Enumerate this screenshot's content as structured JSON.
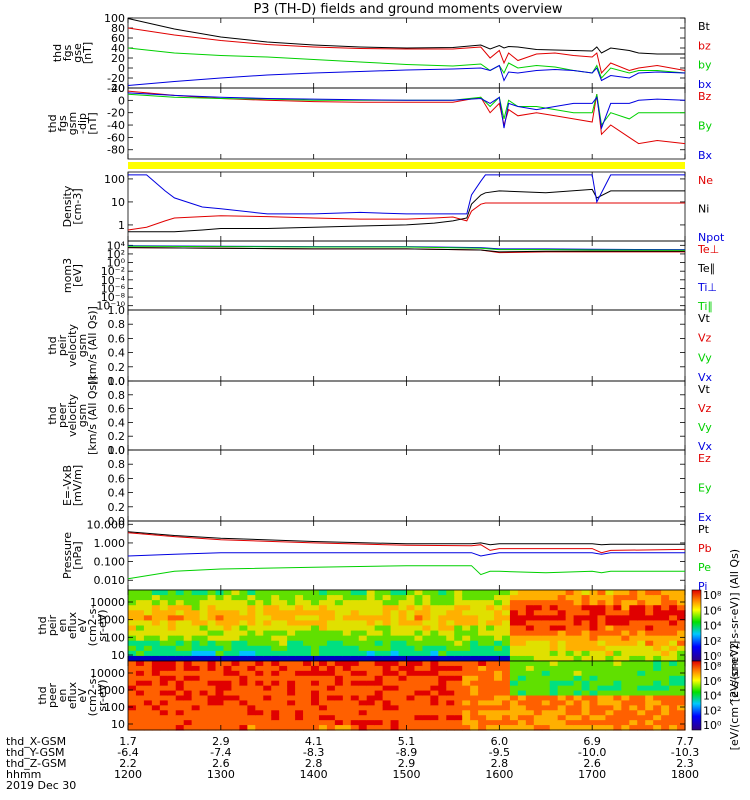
{
  "title": "P3 (TH-D) fields and ground moments overview",
  "time_labels": {
    "rows": [
      "thd_X-GSM",
      "thd_Y-GSM",
      "thd_Z-GSM",
      "hhmm"
    ],
    "date": "2019 Dec 30",
    "x_gsm": [
      "1.7",
      "2.9",
      "4.1",
      "5.1",
      "6.0",
      "6.9",
      "7.7"
    ],
    "y_gsm": [
      "-6.4",
      "-7.4",
      "-8.3",
      "-8.9",
      "-9.5",
      "-10.0",
      "-10.3"
    ],
    "z_gsm": [
      "2.2",
      "2.6",
      "2.8",
      "2.9",
      "2.8",
      "2.6",
      "2.3"
    ],
    "hhmm": [
      "1200",
      "1300",
      "1400",
      "1500",
      "1600",
      "1700",
      "1800"
    ]
  },
  "colors": {
    "black": "#000000",
    "red": "#e00000",
    "green": "#00d000",
    "blue": "#0000e0",
    "yellow": "#ffff00"
  },
  "chart_data": [
    {
      "type": "line",
      "ylabel": [
        "thd",
        "fgs",
        "gse",
        "[nT]"
      ],
      "ylim": [
        -40,
        100
      ],
      "yticks": [
        "100",
        "80",
        "60",
        "40",
        "20",
        "0",
        "-20",
        "-40"
      ],
      "legend": [
        "Bt",
        "bz",
        "by",
        "bx"
      ],
      "legend_colors": [
        "#000000",
        "#e00000",
        "#00d000",
        "#0000e0"
      ],
      "x": [
        0,
        0.5,
        1,
        1.5,
        2,
        2.5,
        3,
        3.5,
        3.8,
        3.9,
        4,
        4.05,
        4.1,
        4.2,
        4.4,
        4.6,
        4.8,
        5,
        5.05,
        5.1,
        5.2,
        5.4,
        5.5,
        5.7,
        6
      ],
      "series": [
        {
          "name": "Bt",
          "color": "#000000",
          "values": [
            99,
            78,
            62,
            52,
            46,
            42,
            40,
            41,
            46,
            38,
            45,
            40,
            43,
            42,
            37,
            36,
            35,
            34,
            42,
            30,
            40,
            35,
            30,
            28,
            28
          ]
        },
        {
          "name": "bz",
          "color": "#e00000",
          "values": [
            80,
            66,
            55,
            47,
            42,
            39,
            38,
            38,
            42,
            20,
            35,
            10,
            30,
            15,
            28,
            30,
            25,
            22,
            30,
            -10,
            10,
            -5,
            0,
            5,
            -5
          ]
        },
        {
          "name": "by",
          "color": "#00d000",
          "values": [
            40,
            30,
            25,
            22,
            17,
            12,
            7,
            4,
            8,
            -5,
            5,
            -10,
            10,
            0,
            5,
            2,
            -5,
            -10,
            5,
            -20,
            0,
            -10,
            -5,
            -5,
            -10
          ]
        },
        {
          "name": "bx",
          "color": "#0000e0",
          "values": [
            -35,
            -27,
            -20,
            -14,
            -10,
            -7,
            -4,
            -2,
            0,
            -5,
            5,
            -25,
            -8,
            -10,
            -5,
            -3,
            -5,
            -10,
            0,
            -25,
            -15,
            -20,
            -10,
            -8,
            -10
          ]
        }
      ]
    },
    {
      "type": "line",
      "ylabel": [
        "thd",
        "fgs",
        "gsm",
        "-dip",
        "[nT]"
      ],
      "ylim": [
        -95,
        20
      ],
      "yticks": [
        "20",
        "0",
        "-20",
        "-40",
        "-60",
        "-80"
      ],
      "legend": [
        "Bz",
        "By",
        "Bx"
      ],
      "legend_colors": [
        "#e00000",
        "#00d000",
        "#0000e0"
      ],
      "x": [
        0,
        0.5,
        1,
        1.5,
        2,
        2.5,
        3,
        3.5,
        3.8,
        3.9,
        4,
        4.05,
        4.1,
        4.2,
        4.4,
        4.6,
        4.8,
        5,
        5.05,
        5.1,
        5.2,
        5.4,
        5.5,
        5.7,
        6
      ],
      "series": [
        {
          "name": "Bz",
          "color": "#e00000",
          "values": [
            15,
            8,
            3,
            0,
            -2,
            -3,
            -3,
            -3,
            5,
            -20,
            -5,
            -40,
            -15,
            -25,
            -20,
            -25,
            -30,
            -35,
            10,
            -55,
            -40,
            -60,
            -70,
            -65,
            -70
          ]
        },
        {
          "name": "By",
          "color": "#00d000",
          "values": [
            10,
            5,
            3,
            2,
            0,
            0,
            0,
            0,
            5,
            -10,
            5,
            -30,
            0,
            -10,
            -10,
            -15,
            -20,
            -20,
            10,
            -40,
            -20,
            -30,
            -20,
            -20,
            -20
          ]
        },
        {
          "name": "Bx",
          "color": "#0000e0",
          "values": [
            12,
            8,
            5,
            3,
            2,
            1,
            0,
            0,
            3,
            -5,
            5,
            -45,
            -5,
            -10,
            -15,
            -10,
            -5,
            -5,
            5,
            -45,
            -5,
            -5,
            0,
            2,
            0
          ]
        }
      ]
    },
    {
      "type": "line",
      "ylabel": [
        "Density",
        "[cm-3]"
      ],
      "ylim": [
        0.2,
        200
      ],
      "scale": "log",
      "yticks": [
        "100",
        "10",
        "1"
      ],
      "legend": [
        "Ne",
        "Ni",
        "Npot"
      ],
      "legend_colors": [
        "#e00000",
        "#000000",
        "#0000e0"
      ],
      "x": [
        0,
        0.2,
        0.4,
        0.5,
        0.8,
        1,
        1.5,
        2,
        2.5,
        3,
        3.3,
        3.5,
        3.65,
        3.7,
        3.8,
        3.85,
        4,
        4.5,
        5,
        5.05,
        5.2,
        5.4,
        6
      ],
      "series": [
        {
          "name": "Ne",
          "color": "#e00000",
          "values": [
            0.6,
            0.8,
            1.5,
            2,
            2.3,
            2.5,
            2.3,
            2,
            1.8,
            1.8,
            2,
            2.2,
            1.5,
            4,
            8,
            9,
            9,
            9,
            9,
            9,
            9,
            9,
            9
          ]
        },
        {
          "name": "Ni",
          "color": "#000000",
          "values": [
            0.5,
            0.5,
            0.5,
            0.5,
            0.6,
            0.7,
            0.7,
            0.8,
            0.9,
            1,
            1.2,
            1.5,
            2,
            8,
            20,
            25,
            30,
            25,
            35,
            15,
            30,
            30,
            30
          ]
        },
        {
          "name": "Npot",
          "color": "#0000e0",
          "values": [
            150,
            150,
            30,
            15,
            6,
            5,
            3,
            3,
            3.5,
            3,
            3,
            3,
            3,
            20,
            80,
            150,
            150,
            150,
            150,
            10,
            150,
            150,
            150
          ]
        }
      ]
    },
    {
      "type": "line",
      "ylabel": [
        "mom3",
        "[eV]"
      ],
      "ylim": [
        1e-11,
        100000.0
      ],
      "scale": "log",
      "yticks": [
        "10⁴",
        "10²",
        "10⁰",
        "10⁻²",
        "10⁻⁴",
        "10⁻⁶",
        "10⁻⁸",
        "10⁻¹⁰"
      ],
      "legend": [
        "Te⊥",
        "Te∥",
        "Ti⊥",
        "Ti∥"
      ],
      "legend_colors": [
        "#e00000",
        "#000000",
        "#0000e0",
        "#00d000"
      ],
      "x": [
        0,
        1,
        2,
        3,
        3.8,
        4,
        4.5,
        5,
        6
      ],
      "series": [
        {
          "name": "Te⊥",
          "color": "#e00000",
          "values": [
            3000,
            2000,
            1500,
            1500,
            800,
            200,
            300,
            300,
            300
          ]
        },
        {
          "name": "Te∥",
          "color": "#000000",
          "values": [
            3000,
            2000,
            1500,
            1500,
            800,
            300,
            400,
            400,
            400
          ]
        },
        {
          "name": "Ti⊥",
          "color": "#0000e0",
          "values": [
            8000,
            6000,
            5000,
            5000,
            3000,
            1500,
            1500,
            1200,
            1000
          ]
        },
        {
          "name": "Ti∥",
          "color": "#00d000",
          "values": [
            6000,
            5000,
            4000,
            4000,
            2000,
            1000,
            1000,
            800,
            700
          ]
        }
      ]
    },
    {
      "type": "line",
      "ylabel": [
        "thd",
        "peir",
        "velocity",
        "gsm",
        "[km/s (All Qs)]"
      ],
      "ylim": [
        0,
        1
      ],
      "yticks": [
        "1.0",
        "0.8",
        "0.6",
        "0.4",
        "0.2",
        "0.0"
      ],
      "legend": [
        "Vt",
        "Vz",
        "Vy",
        "Vx"
      ],
      "legend_colors": [
        "#000000",
        "#e00000",
        "#00d000",
        "#0000e0"
      ],
      "series": []
    },
    {
      "type": "line",
      "ylabel": [
        "thd",
        "peer",
        "velocity",
        "gsm",
        "[km/s (All Qs)]"
      ],
      "ylim": [
        0,
        1
      ],
      "yticks": [
        "1.0",
        "0.8",
        "0.6",
        "0.4",
        "0.2",
        "0.0"
      ],
      "legend": [
        "Vt",
        "Vz",
        "Vy",
        "Vx"
      ],
      "legend_colors": [
        "#000000",
        "#e00000",
        "#00d000",
        "#0000e0"
      ],
      "series": []
    },
    {
      "type": "line",
      "ylabel": [
        "E=-VxB",
        "[mV/m]"
      ],
      "ylim": [
        0,
        1
      ],
      "yticks": [
        "1.0",
        "0.8",
        "0.6",
        "0.4",
        "0.2",
        "0.0"
      ],
      "legend": [
        "Ez",
        "Ey",
        "Ex"
      ],
      "legend_colors": [
        "#e00000",
        "#00d000",
        "#0000e0"
      ],
      "series": []
    },
    {
      "type": "line",
      "ylabel": [
        "Pressure",
        "[nPa]"
      ],
      "ylim": [
        0.003,
        15
      ],
      "scale": "log",
      "yticks": [
        "10.000",
        "1.000",
        "0.100",
        "0.010"
      ],
      "legend": [
        "Pt",
        "Pb",
        "Pe",
        "Pi"
      ],
      "legend_colors": [
        "#000000",
        "#e00000",
        "#00d000",
        "#0000e0"
      ],
      "x": [
        0,
        0.5,
        1,
        2,
        3,
        3.7,
        3.8,
        3.9,
        4,
        4.5,
        5,
        5.1,
        5.2,
        6
      ],
      "series": [
        {
          "name": "Pt",
          "color": "#000000",
          "values": [
            4,
            2.5,
            1.8,
            1.2,
            0.9,
            0.9,
            1,
            0.8,
            0.9,
            0.9,
            0.9,
            0.8,
            0.85,
            0.85
          ]
        },
        {
          "name": "Pb",
          "color": "#e00000",
          "values": [
            3.5,
            2.2,
            1.5,
            1,
            0.75,
            0.7,
            0.8,
            0.4,
            0.5,
            0.5,
            0.5,
            0.3,
            0.4,
            0.45
          ]
        },
        {
          "name": "Pe",
          "color": "#00d000",
          "values": [
            0.012,
            0.03,
            0.04,
            0.05,
            0.06,
            0.06,
            0.02,
            0.03,
            0.03,
            0.025,
            0.03,
            0.025,
            0.03,
            0.03
          ]
        },
        {
          "name": "Pi",
          "color": "#0000e0",
          "values": [
            0.2,
            0.25,
            0.3,
            0.3,
            0.3,
            0.3,
            0.2,
            0.25,
            0.3,
            0.3,
            0.3,
            0.25,
            0.3,
            0.3
          ]
        }
      ]
    },
    {
      "type": "heatmap",
      "ylabel": [
        "thd",
        "peir",
        "en",
        "eflux",
        "eV",
        "(cm2-s-",
        "sr-eV)"
      ],
      "scale": "log",
      "yticks": [
        "10000",
        "1000",
        "100",
        "10"
      ],
      "colorbar_ticks": [
        "10⁸",
        "10⁶",
        "10⁴",
        "10²",
        "10⁰"
      ],
      "colorbar_label": "[eV/(cm^2-s-sr-eV)] (All Qs)"
    },
    {
      "type": "heatmap",
      "ylabel": [
        "thd",
        "peer",
        "en",
        "eflux",
        "eV",
        "(cm2-s-",
        "sr-eV)"
      ],
      "scale": "log",
      "yticks": [
        "10000",
        "1000",
        "100",
        "10"
      ],
      "colorbar_ticks": [
        "10⁸",
        "10⁶",
        "10⁴",
        "10²",
        "10⁰"
      ],
      "colorbar_label": "[eV/(cm^2-s-sr-eV)]"
    }
  ]
}
